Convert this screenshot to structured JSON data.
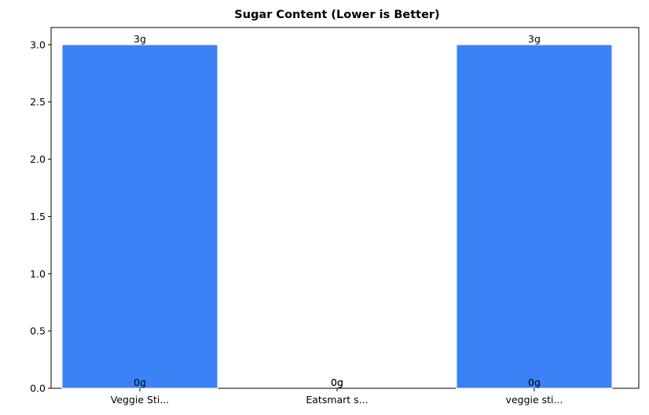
{
  "chart_data": {
    "type": "bar",
    "title": "Sugar Content (Lower is Better)",
    "categories": [
      "Veggie Sti...",
      "Eatsmart s...",
      "veggie sti..."
    ],
    "series": [
      {
        "color": "#3b82f6",
        "values": [
          3,
          0,
          3
        ],
        "value_labels": [
          "3g",
          "0g",
          "3g"
        ]
      },
      {
        "color": "#3b82f6",
        "values": [
          0,
          0,
          0
        ],
        "value_labels": [
          "0g",
          "0g",
          "0g"
        ]
      }
    ],
    "ylim": [
      0,
      3.15
    ],
    "yticks": [
      {
        "value": 0,
        "label": "0.0"
      },
      {
        "value": 0.5,
        "label": "0.5"
      },
      {
        "value": 1,
        "label": "1.0"
      },
      {
        "value": 1.5,
        "label": "1.5"
      },
      {
        "value": 2,
        "label": "2.0"
      },
      {
        "value": 2.5,
        "label": "2.5"
      },
      {
        "value": 3,
        "label": "3.0"
      }
    ],
    "grid": false
  }
}
